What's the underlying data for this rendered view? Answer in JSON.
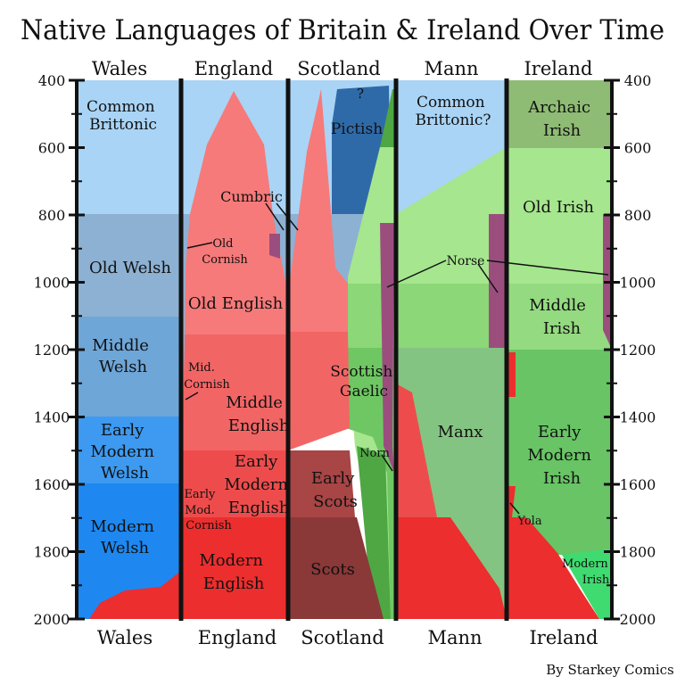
{
  "title": "Native Languages of Britain & Ireland Over Time",
  "credit": "By Starkey Comics",
  "axis": {
    "min": 400,
    "max": 2000,
    "labels": [
      "400",
      "600",
      "800",
      "1000",
      "1200",
      "1400",
      "1600",
      "1800",
      "2000"
    ]
  },
  "columns": [
    {
      "id": "wales",
      "name": "Wales"
    },
    {
      "id": "england",
      "name": "England"
    },
    {
      "id": "scotland",
      "name": "Scotland"
    },
    {
      "id": "mann",
      "name": "Mann"
    },
    {
      "id": "ireland",
      "name": "Ireland"
    }
  ],
  "labels": {
    "wales": {
      "common_brittonic": [
        "Common",
        "Brittonic"
      ],
      "old_welsh": [
        "Old Welsh"
      ],
      "middle_welsh": [
        "Middle",
        "Welsh"
      ],
      "early_modern_welsh": [
        "Early",
        "Modern",
        "Welsh"
      ],
      "modern_welsh": [
        "Modern",
        "Welsh"
      ]
    },
    "england": {
      "cumbric": [
        "Cumbric"
      ],
      "old_cornish": [
        "Old",
        "Cornish"
      ],
      "old_english": [
        "Old English"
      ],
      "mid_cornish": [
        "Mid.",
        "Cornish"
      ],
      "middle_english": [
        "Middle",
        "English"
      ],
      "early_modern_english": [
        "Early",
        "Modern",
        "English"
      ],
      "early_mod_cornish": [
        "Early",
        "Mod.",
        "Cornish"
      ],
      "modern_english": [
        "Modern",
        "English"
      ]
    },
    "scotland": {
      "unknown": [
        "?"
      ],
      "pictish": [
        "Pictish"
      ],
      "scottish_gaelic": [
        "Scottish",
        "Gaelic"
      ],
      "norn": [
        "Norn"
      ],
      "early_scots": [
        "Early",
        "Scots"
      ],
      "scots": [
        "Scots"
      ]
    },
    "mann": {
      "common_brittonic": [
        "Common",
        "Brittonic?"
      ],
      "norse": [
        "Norse"
      ],
      "manx": [
        "Manx"
      ]
    },
    "ireland": {
      "archaic_irish": [
        "Archaic",
        "Irish"
      ],
      "old_irish": [
        "Old Irish"
      ],
      "middle_irish": [
        "Middle",
        "Irish"
      ],
      "early_modern_irish": [
        "Early",
        "Modern",
        "Irish"
      ],
      "yola": [
        "Yola"
      ],
      "modern_irish": [
        "Modern",
        "Irish"
      ]
    }
  },
  "colors": {
    "brittonic": "#a9d4f5",
    "old_welsh": "#8db1d3",
    "middle_welsh": "#6ea6d8",
    "early_modern_welsh": "#3d9af0",
    "modern_welsh": "#1e88f0",
    "old_english": "#f67a7a",
    "middle_english": "#f26565",
    "early_modern_english": "#ee4c4c",
    "modern_english": "#ec2e2e",
    "pictish": "#2f6aa8",
    "old_gaelic": "#a6e68e",
    "middle_gaelic": "#8cd777",
    "scottish_gaelic": "#6ec762",
    "late_gaelic": "#4ea743",
    "early_scots": "#a84545",
    "scots": "#8a3838",
    "norse": "#9b4e7e",
    "manx": "#84c482",
    "archaic_irish": "#8fbc75",
    "old_irish": "#a6e68e",
    "middle_irish": "#94da80",
    "early_modern_irish": "#68c465",
    "modern_irish": "#3fdb70",
    "divider": "#111111"
  }
}
